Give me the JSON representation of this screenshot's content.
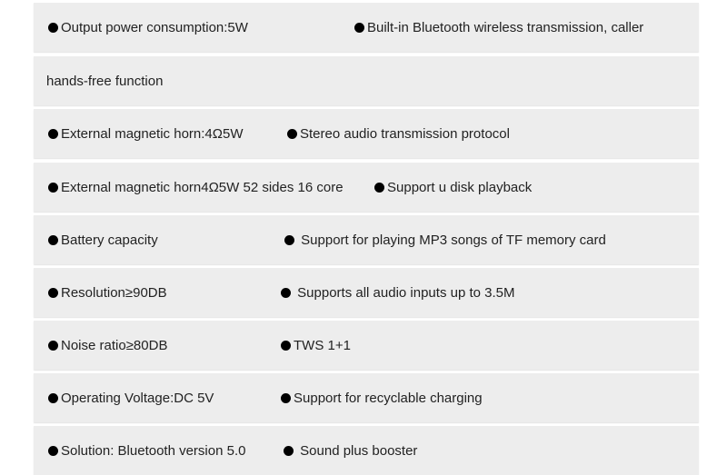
{
  "rows": [
    {
      "left": "Output power consumption:5W",
      "right": "Built-in Bluetooth wireless transmission, caller"
    },
    {
      "plain": "hands-free function"
    },
    {
      "left": "External magnetic horn:4Ω5W",
      "right": "Stereo audio transmission protocol"
    },
    {
      "left": "External magnetic horn4Ω5W 52 sides 16 core",
      "right": "Support u disk playback"
    },
    {
      "left": "Battery capacity",
      "right": " Support for playing MP3 songs of TF memory card"
    },
    {
      "left": "Resolution≥90DB",
      "right": " Supports all audio inputs up to 3.5M"
    },
    {
      "left": "Noise ratio≥80DB",
      "right": "TWS 1+1"
    },
    {
      "left": "Operating Voltage:DC 5V",
      "right": "Support for recyclable charging"
    },
    {
      "left": "Solution: Bluetooth version 5.0",
      "right": " Sound plus booster"
    }
  ],
  "bullet_icon": "black-circle"
}
